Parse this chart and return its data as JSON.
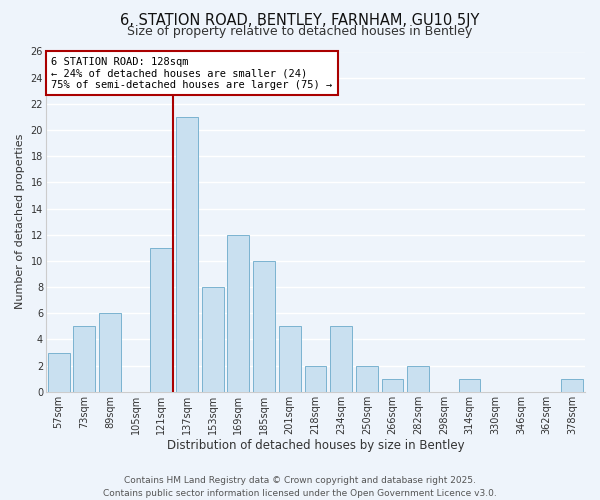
{
  "title": "6, STATION ROAD, BENTLEY, FARNHAM, GU10 5JY",
  "subtitle": "Size of property relative to detached houses in Bentley",
  "xlabel": "Distribution of detached houses by size in Bentley",
  "ylabel": "Number of detached properties",
  "categories": [
    "57sqm",
    "73sqm",
    "89sqm",
    "105sqm",
    "121sqm",
    "137sqm",
    "153sqm",
    "169sqm",
    "185sqm",
    "201sqm",
    "218sqm",
    "234sqm",
    "250sqm",
    "266sqm",
    "282sqm",
    "298sqm",
    "314sqm",
    "330sqm",
    "346sqm",
    "362sqm",
    "378sqm"
  ],
  "values": [
    3,
    5,
    6,
    0,
    11,
    21,
    8,
    12,
    10,
    5,
    2,
    5,
    2,
    1,
    2,
    0,
    1,
    0,
    0,
    0,
    1
  ],
  "bar_color": "#c9e0f0",
  "bar_edge_color": "#7ab3d0",
  "vline_color": "#aa0000",
  "annotation_text_line1": "6 STATION ROAD: 128sqm",
  "annotation_text_line2": "← 24% of detached houses are smaller (24)",
  "annotation_text_line3": "75% of semi-detached houses are larger (75) →",
  "ylim": [
    0,
    26
  ],
  "yticks": [
    0,
    2,
    4,
    6,
    8,
    10,
    12,
    14,
    16,
    18,
    20,
    22,
    24,
    26
  ],
  "background_color": "#eef4fb",
  "grid_color": "#ffffff",
  "footer_line1": "Contains HM Land Registry data © Crown copyright and database right 2025.",
  "footer_line2": "Contains public sector information licensed under the Open Government Licence v3.0.",
  "title_fontsize": 10.5,
  "subtitle_fontsize": 9,
  "xlabel_fontsize": 8.5,
  "ylabel_fontsize": 8,
  "tick_fontsize": 7,
  "annot_fontsize": 7.5,
  "footer_fontsize": 6.5
}
